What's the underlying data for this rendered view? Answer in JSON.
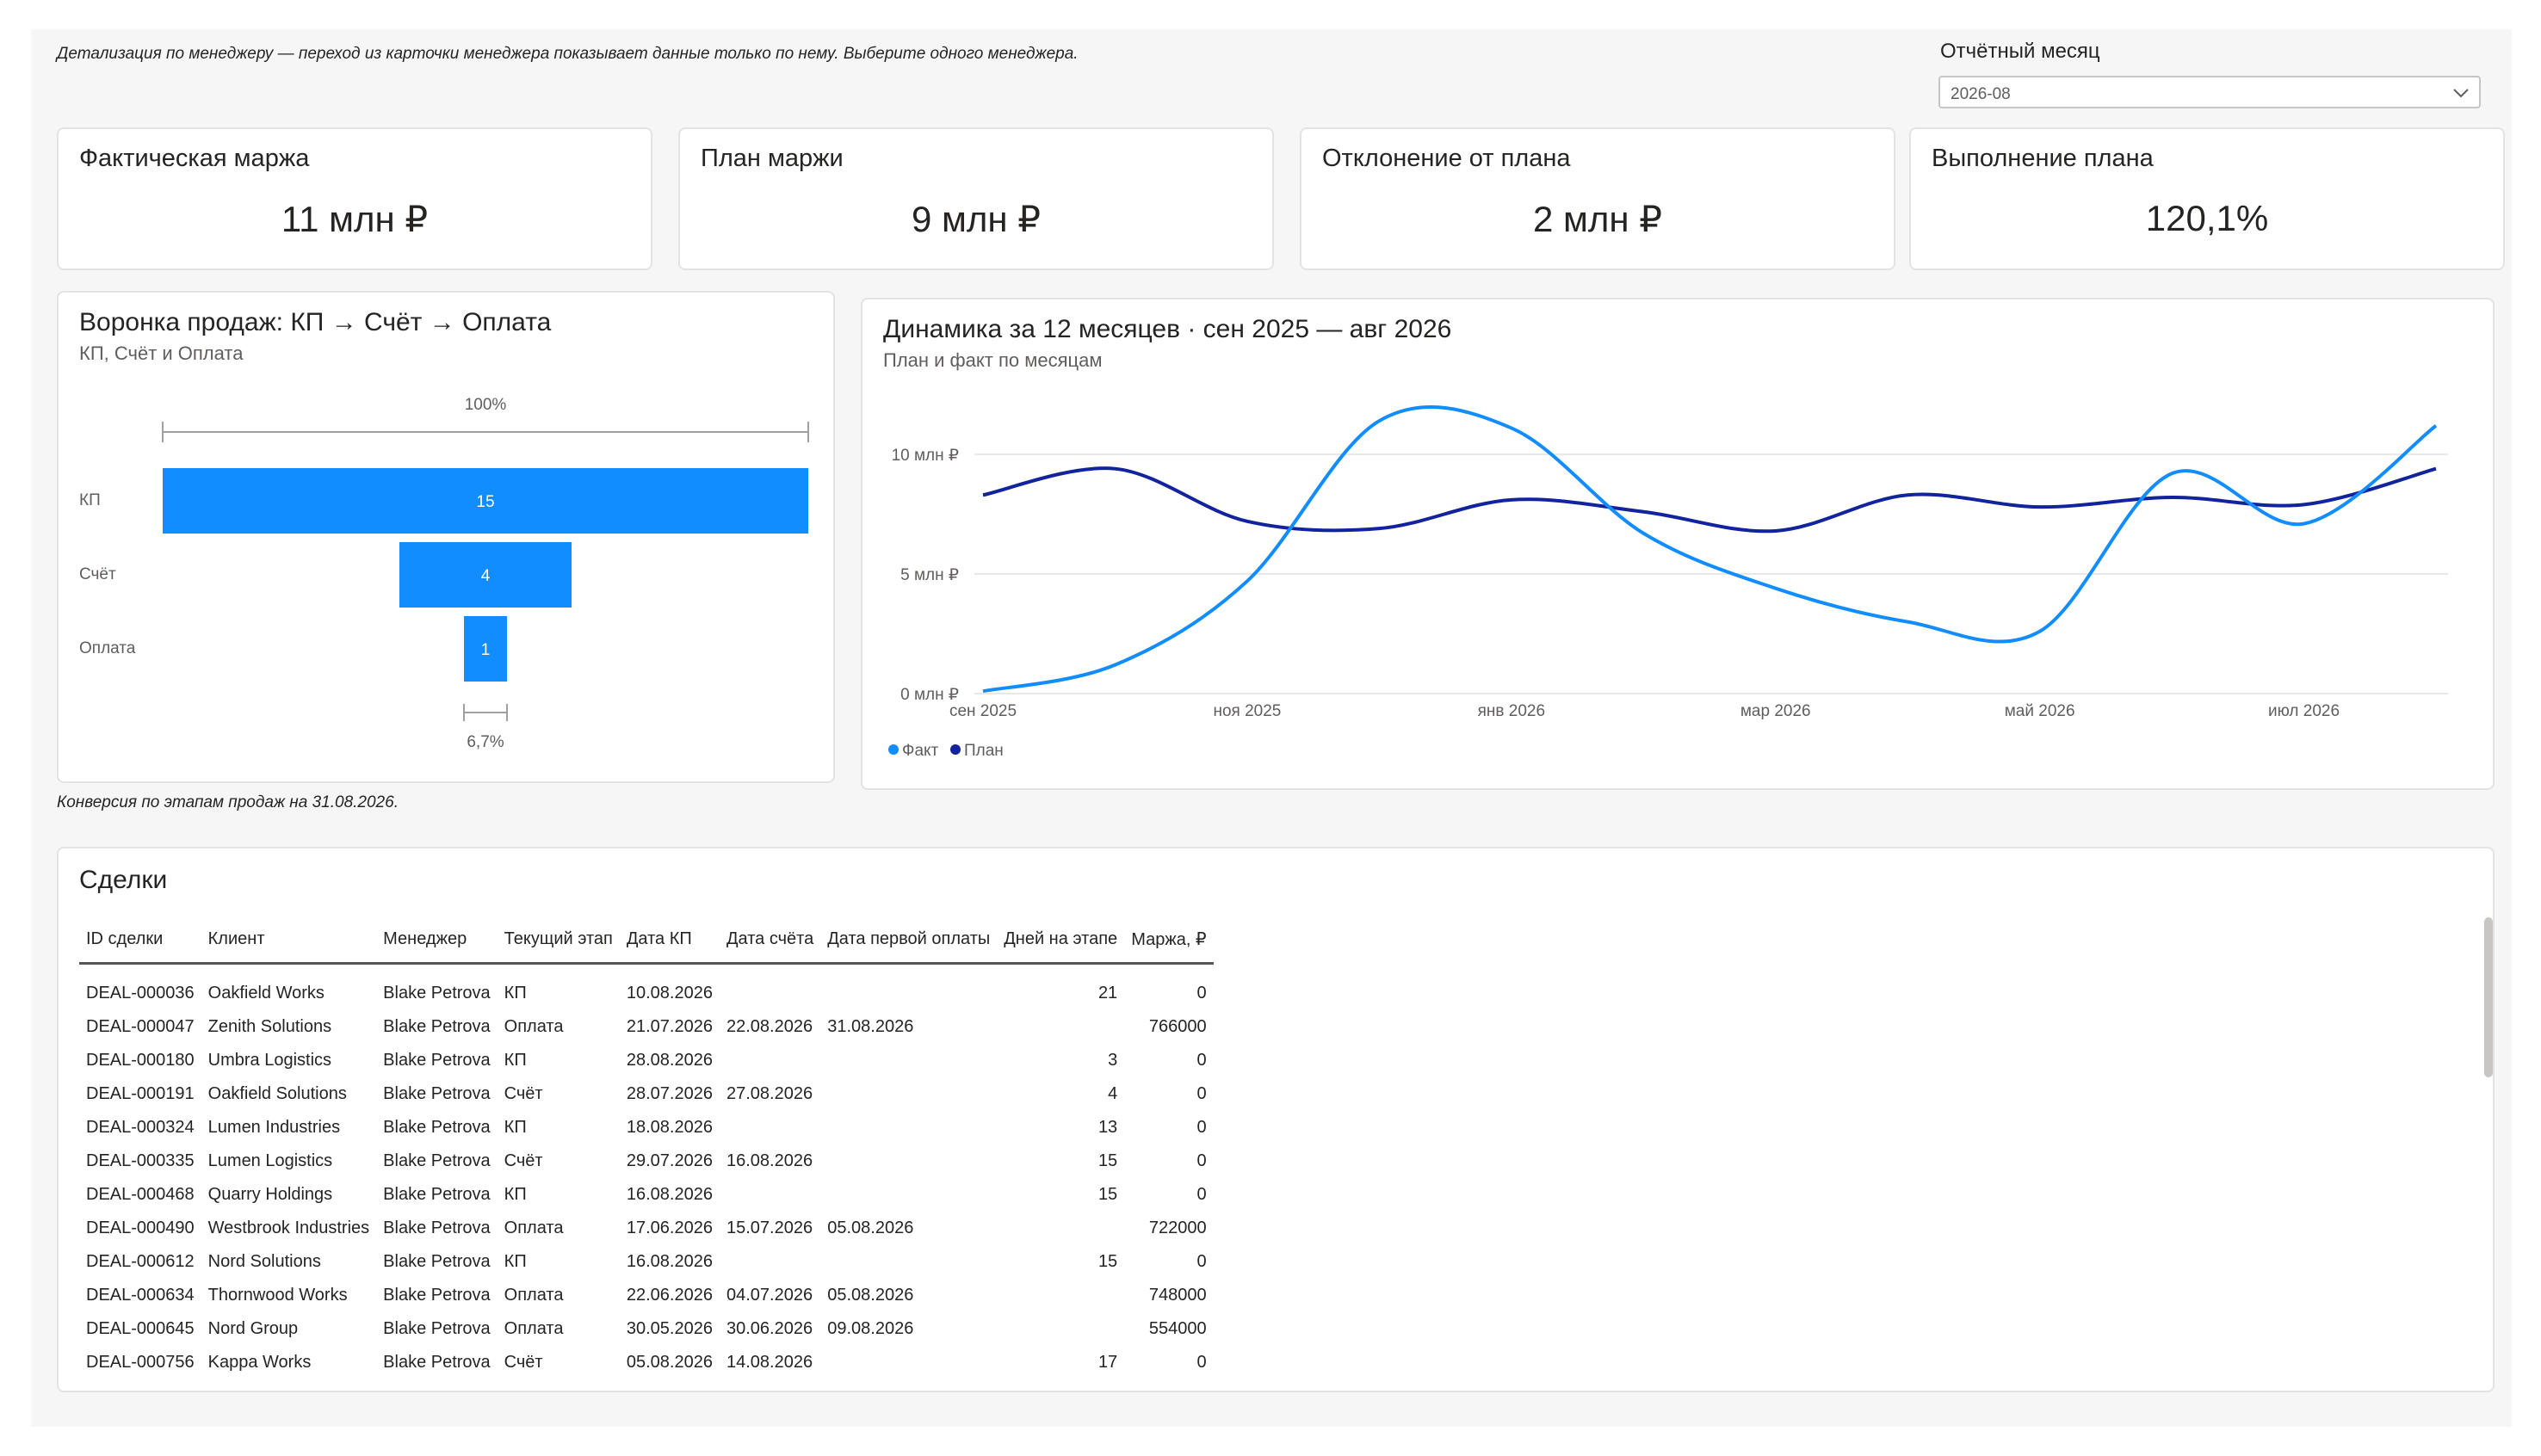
{
  "note_top": "Детализация по менеджеру — переход из карточки менеджера показывает данные только по нему. Выберите одного менеджера.",
  "slicer": {
    "title": "Отчётный месяц",
    "value": "2026-08"
  },
  "kpis": [
    {
      "title": "Фактическая маржа",
      "value": "11 млн ₽"
    },
    {
      "title": "План маржи",
      "value": "9 млн ₽"
    },
    {
      "title": "Отклонение от плана",
      "value": "2 млн ₽"
    },
    {
      "title": "Выполнение плана",
      "value": "120,1%"
    }
  ],
  "funnel": {
    "title": "Воронка продаж: КП → Счёт → Оплата",
    "subtitle": "КП, Счёт и Оплата",
    "top_label": "100%",
    "bottom_label": "6,7%",
    "note": "Конверсия по этапам продаж на 31.08.2026.",
    "color": "#118dff"
  },
  "line_chart": {
    "title": "Динамика за 12 месяцев · сен 2025 — авг 2026",
    "subtitle": "План и факт по месяцам",
    "y_ticks": [
      "10 млн ₽",
      "5 млн ₽",
      "0 млн ₽"
    ],
    "x_ticks": [
      "сен 2025",
      "ноя 2025",
      "янв 2026",
      "мар 2026",
      "май 2026",
      "июл 2026"
    ],
    "legend": [
      "Факт",
      "План"
    ]
  },
  "chart_data": [
    {
      "type": "bar",
      "categories": [
        "КП",
        "Счёт",
        "Оплата"
      ],
      "values": [
        15,
        4,
        1
      ],
      "color": "#118dff"
    },
    {
      "type": "line",
      "x": [
        "сен 2025",
        "окт 2025",
        "ноя 2025",
        "дек 2025",
        "янв 2026",
        "фев 2026",
        "мар 2026",
        "апр 2026",
        "май 2026",
        "июн 2026",
        "июл 2026",
        "авг 2026"
      ],
      "series": [
        {
          "name": "Факт",
          "color": "#118dff",
          "values": [
            0.1,
            1.2,
            4.7,
            11.4,
            11.1,
            6.7,
            4.4,
            3.0,
            2.6,
            9.2,
            7.1,
            11.2
          ]
        },
        {
          "name": "План",
          "color": "#12239e",
          "values": [
            8.3,
            9.4,
            7.2,
            6.9,
            8.1,
            7.6,
            6.8,
            8.3,
            7.8,
            8.2,
            7.9,
            9.4
          ]
        }
      ],
      "ylim": [
        0,
        10
      ],
      "y_unit": "млн ₽"
    }
  ],
  "table": {
    "title": "Сделки",
    "columns": [
      "ID сделки",
      "Клиент",
      "Менеджер",
      "Текущий этап",
      "Дата КП",
      "Дата счёта",
      "Дата первой оплаты",
      "Дней на этапе",
      "Маржа, ₽"
    ],
    "rows": [
      [
        "DEAL-000036",
        "Oakfield Works",
        "Blake Petrova",
        "КП",
        "10.08.2026",
        "",
        "",
        "21",
        "0"
      ],
      [
        "DEAL-000047",
        "Zenith Solutions",
        "Blake Petrova",
        "Оплата",
        "21.07.2026",
        "22.08.2026",
        "31.08.2026",
        "",
        "766000"
      ],
      [
        "DEAL-000180",
        "Umbra Logistics",
        "Blake Petrova",
        "КП",
        "28.08.2026",
        "",
        "",
        "3",
        "0"
      ],
      [
        "DEAL-000191",
        "Oakfield Solutions",
        "Blake Petrova",
        "Счёт",
        "28.07.2026",
        "27.08.2026",
        "",
        "4",
        "0"
      ],
      [
        "DEAL-000324",
        "Lumen Industries",
        "Blake Petrova",
        "КП",
        "18.08.2026",
        "",
        "",
        "13",
        "0"
      ],
      [
        "DEAL-000335",
        "Lumen Logistics",
        "Blake Petrova",
        "Счёт",
        "29.07.2026",
        "16.08.2026",
        "",
        "15",
        "0"
      ],
      [
        "DEAL-000468",
        "Quarry Holdings",
        "Blake Petrova",
        "КП",
        "16.08.2026",
        "",
        "",
        "15",
        "0"
      ],
      [
        "DEAL-000490",
        "Westbrook Industries",
        "Blake Petrova",
        "Оплата",
        "17.06.2026",
        "15.07.2026",
        "05.08.2026",
        "",
        "722000"
      ],
      [
        "DEAL-000612",
        "Nord Solutions",
        "Blake Petrova",
        "КП",
        "16.08.2026",
        "",
        "",
        "15",
        "0"
      ],
      [
        "DEAL-000634",
        "Thornwood Works",
        "Blake Petrova",
        "Оплата",
        "22.06.2026",
        "04.07.2026",
        "05.08.2026",
        "",
        "748000"
      ],
      [
        "DEAL-000645",
        "Nord Group",
        "Blake Petrova",
        "Оплата",
        "30.05.2026",
        "30.06.2026",
        "09.08.2026",
        "",
        "554000"
      ],
      [
        "DEAL-000756",
        "Kappa Works",
        "Blake Petrova",
        "Счёт",
        "05.08.2026",
        "14.08.2026",
        "",
        "17",
        "0"
      ]
    ]
  }
}
